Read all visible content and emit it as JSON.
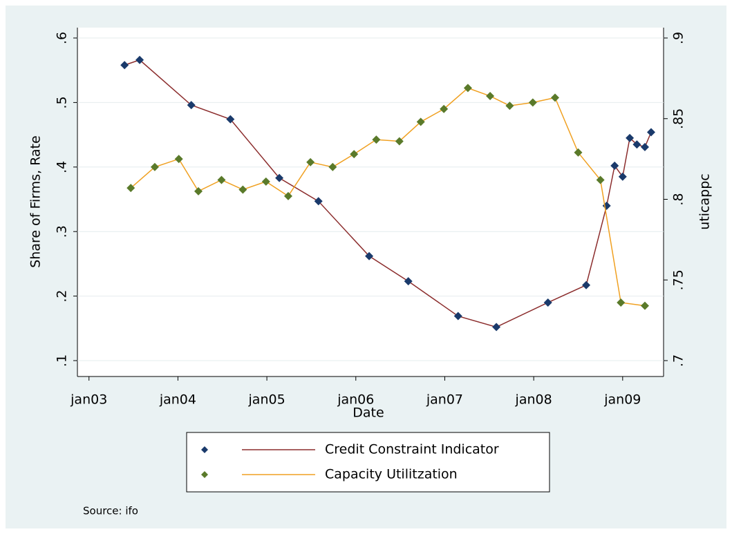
{
  "chart_data": {
    "type": "line",
    "x_label": "Date",
    "y_label": "Share of Firms, Rate",
    "y2_label": "uticappc",
    "source": "Source: ifo",
    "xlim": [
      2002.87,
      2009.46
    ],
    "xticks": [
      {
        "value": 2003,
        "label": "jan03"
      },
      {
        "value": 2004,
        "label": "jan04"
      },
      {
        "value": 2005,
        "label": "jan05"
      },
      {
        "value": 2006,
        "label": "jan06"
      },
      {
        "value": 2007,
        "label": "jan07"
      },
      {
        "value": 2008,
        "label": "jan08"
      },
      {
        "value": 2009,
        "label": "jan09"
      }
    ],
    "ylim": [
      0.1,
      0.6
    ],
    "yticks": [
      {
        "value": 0.1,
        "label": ".1"
      },
      {
        "value": 0.2,
        "label": ".2"
      },
      {
        "value": 0.3,
        "label": ".3"
      },
      {
        "value": 0.4,
        "label": ".4"
      },
      {
        "value": 0.5,
        "label": ".5"
      },
      {
        "value": 0.6,
        "label": ".6"
      }
    ],
    "y2lim": [
      0.7,
      0.9
    ],
    "y2ticks": [
      {
        "value": 0.7,
        "label": ".7"
      },
      {
        "value": 0.75,
        "label": ".75"
      },
      {
        "value": 0.8,
        "label": ".8"
      },
      {
        "value": 0.85,
        "label": ".85"
      },
      {
        "value": 0.9,
        "label": ".9"
      }
    ],
    "grid": true,
    "series": [
      {
        "name": "Credit Constraint Indicator",
        "color": "#8b2c2c",
        "marker_color": "#1a3a6b",
        "x": [
          2003.4,
          2003.57,
          2004.15,
          2004.59,
          2005.14,
          2005.58,
          2006.15,
          2006.59,
          2007.15,
          2007.58,
          2008.16,
          2008.59,
          2008.82,
          2008.91,
          2009.0,
          2009.08,
          2009.16,
          2009.25,
          2009.32
        ],
        "values": [
          0.558,
          0.566,
          0.496,
          0.474,
          0.383,
          0.347,
          0.262,
          0.223,
          0.169,
          0.152,
          0.19,
          0.217,
          0.34,
          0.402,
          0.385,
          0.445,
          0.435,
          0.431,
          0.454
        ]
      },
      {
        "name": "Capacity Utilitzation",
        "color": "#f0a020",
        "marker_color": "#5a7a2a",
        "axis": "y2",
        "x": [
          2003.47,
          2003.74,
          2004.01,
          2004.23,
          2004.49,
          2004.73,
          2004.99,
          2005.24,
          2005.49,
          2005.74,
          2005.98,
          2006.23,
          2006.49,
          2006.73,
          2006.99,
          2007.26,
          2007.51,
          2007.73,
          2007.99,
          2008.24,
          2008.5,
          2008.75,
          2008.98,
          2009.25
        ],
        "values": [
          0.807,
          0.82,
          0.825,
          0.805,
          0.812,
          0.806,
          0.811,
          0.802,
          0.823,
          0.82,
          0.828,
          0.837,
          0.836,
          0.848,
          0.856,
          0.869,
          0.864,
          0.858,
          0.86,
          0.863,
          0.829,
          0.812,
          0.736,
          0.734
        ]
      }
    ]
  }
}
